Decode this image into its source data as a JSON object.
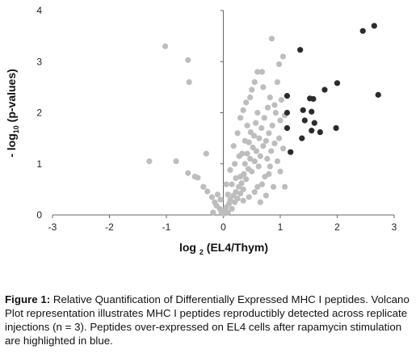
{
  "chart_data": {
    "type": "scatter",
    "title": "",
    "xlabel": "log 2 (EL4/Thym)",
    "xlabel_parts": {
      "prefix": "log ",
      "sub": "2",
      "suffix": " (EL4/Thym)"
    },
    "ylabel": "- log10 (p-values)",
    "ylabel_parts": {
      "prefix": "- log",
      "sub": "10",
      "suffix": " (p-values)"
    },
    "xlim": [
      -3,
      3
    ],
    "ylim": [
      0,
      4
    ],
    "xticks": [
      "-3",
      "-2",
      "-1",
      "0",
      "1",
      "2",
      "3"
    ],
    "yticks": [
      "0",
      "1",
      "2",
      "3",
      "4"
    ],
    "grid": false,
    "legend": "none",
    "series": [
      {
        "color": "#bdbdbd",
        "points": [
          [
            -1.02,
            3.3
          ],
          [
            -0.62,
            3.03
          ],
          [
            -0.6,
            2.6
          ],
          [
            -0.83,
            1.05
          ],
          [
            -1.3,
            1.05
          ],
          [
            -0.62,
            0.82
          ],
          [
            -0.5,
            0.75
          ],
          [
            -0.45,
            0.73
          ],
          [
            -0.35,
            0.55
          ],
          [
            -0.28,
            0.46
          ],
          [
            -0.2,
            0.35
          ],
          [
            -0.15,
            0.25
          ],
          [
            -0.12,
            0.18
          ],
          [
            -0.06,
            0.12
          ],
          [
            -0.03,
            0.05
          ],
          [
            0.0,
            0.02
          ],
          [
            0.02,
            0.08
          ],
          [
            0.05,
            0.15
          ],
          [
            0.08,
            0.05
          ],
          [
            0.1,
            0.22
          ],
          [
            0.12,
            0.3
          ],
          [
            0.15,
            0.12
          ],
          [
            0.18,
            0.38
          ],
          [
            0.2,
            0.25
          ],
          [
            0.22,
            0.45
          ],
          [
            0.25,
            0.32
          ],
          [
            0.27,
            0.55
          ],
          [
            0.3,
            0.42
          ],
          [
            0.32,
            0.62
          ],
          [
            0.35,
            0.5
          ],
          [
            0.36,
            0.8
          ],
          [
            0.38,
            1.0
          ],
          [
            0.4,
            0.7
          ],
          [
            0.42,
            1.2
          ],
          [
            0.44,
            0.9
          ],
          [
            0.45,
            1.42
          ],
          [
            0.47,
            1.1
          ],
          [
            0.48,
            1.62
          ],
          [
            0.5,
            0.85
          ],
          [
            0.52,
            1.32
          ],
          [
            0.54,
            1.55
          ],
          [
            0.55,
            1.05
          ],
          [
            0.57,
            1.8
          ],
          [
            0.58,
            1.25
          ],
          [
            0.6,
            2.0
          ],
          [
            0.62,
            0.95
          ],
          [
            0.63,
            1.5
          ],
          [
            0.65,
            1.15
          ],
          [
            0.67,
            1.7
          ],
          [
            0.68,
            0.6
          ],
          [
            0.7,
            1.35
          ],
          [
            0.72,
            1.9
          ],
          [
            0.73,
            0.75
          ],
          [
            0.75,
            1.45
          ],
          [
            0.77,
            1.1
          ],
          [
            0.78,
            2.1
          ],
          [
            0.8,
            1.6
          ],
          [
            0.82,
            0.95
          ],
          [
            0.84,
            1.25
          ],
          [
            0.86,
            1.75
          ],
          [
            0.88,
            0.55
          ],
          [
            0.9,
            1.4
          ],
          [
            0.92,
            2.0
          ],
          [
            0.95,
            1.05
          ],
          [
            0.98,
            1.5
          ],
          [
            1.0,
            0.85
          ],
          [
            1.02,
            2.25
          ],
          [
            1.05,
            1.3
          ],
          [
            1.08,
            1.95
          ],
          [
            0.35,
            2.05
          ],
          [
            0.4,
            2.2
          ],
          [
            0.3,
            1.9
          ],
          [
            0.25,
            1.6
          ],
          [
            0.18,
            1.35
          ],
          [
            0.28,
            1.15
          ],
          [
            0.2,
            1.0
          ],
          [
            0.12,
            0.88
          ],
          [
            0.22,
            0.72
          ],
          [
            0.05,
            0.6
          ],
          [
            0.08,
            0.4
          ],
          [
            -0.05,
            0.3
          ],
          [
            0.35,
            0.28
          ],
          [
            0.45,
            0.35
          ],
          [
            0.55,
            0.45
          ],
          [
            0.65,
            0.25
          ],
          [
            0.75,
            0.38
          ],
          [
            0.6,
            2.8
          ],
          [
            0.68,
            2.8
          ],
          [
            0.5,
            2.45
          ],
          [
            0.55,
            2.6
          ],
          [
            0.85,
            3.45
          ],
          [
            0.98,
            2.95
          ],
          [
            1.05,
            3.1
          ],
          [
            0.42,
            1.75
          ],
          [
            0.47,
            2.3
          ],
          [
            0.7,
            2.5
          ],
          [
            0.82,
            2.3
          ],
          [
            0.95,
            2.6
          ],
          [
            0.38,
            1.45
          ],
          [
            0.33,
            1.2
          ],
          [
            -0.3,
            1.2
          ],
          [
            -0.18,
            0.05
          ],
          [
            -0.1,
            0.4
          ],
          [
            0.15,
            0.6
          ],
          [
            0.3,
            0.75
          ],
          [
            0.6,
            0.55
          ],
          [
            0.8,
            0.8
          ],
          [
            1.08,
            0.55
          ],
          [
            1.0,
            1.85
          ],
          [
            0.9,
            2.15
          ]
        ]
      },
      {
        "color": "#2b2b2b",
        "points": [
          [
            2.45,
            3.6
          ],
          [
            2.65,
            3.7
          ],
          [
            1.35,
            3.23
          ],
          [
            1.78,
            2.45
          ],
          [
            2.0,
            2.58
          ],
          [
            2.72,
            2.35
          ],
          [
            1.12,
            2.33
          ],
          [
            1.52,
            2.28
          ],
          [
            1.58,
            2.27
          ],
          [
            1.12,
            2.0
          ],
          [
            1.4,
            2.05
          ],
          [
            1.55,
            2.02
          ],
          [
            1.43,
            1.85
          ],
          [
            1.6,
            1.8
          ],
          [
            1.12,
            1.7
          ],
          [
            1.55,
            1.65
          ],
          [
            1.7,
            1.62
          ],
          [
            1.98,
            1.7
          ],
          [
            1.38,
            1.5
          ],
          [
            1.18,
            1.23
          ]
        ]
      }
    ]
  },
  "caption": {
    "lead": "Figure 1:",
    "text": " Relative Quantification of Differentially Expressed MHC I peptides. Volcano Plot representation illustrates MHC I peptides reproductibly detected across replicate injections (n = 3). Peptides over-expressed on EL4 cells after rapamycin stimulation are highlighted in blue."
  }
}
